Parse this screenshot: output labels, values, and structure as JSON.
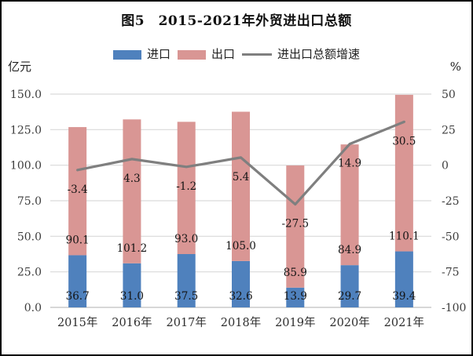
{
  "figure": {
    "title": "图5　2015-2021年外贸进出口总额",
    "left_axis_unit": "亿元",
    "right_axis_unit": "%"
  },
  "legend": [
    {
      "label": "进口",
      "marker": "swatch",
      "color": "#4F81BD"
    },
    {
      "label": "出口",
      "marker": "swatch",
      "color": "#D99694"
    },
    {
      "label": "进出口总额增速",
      "marker": "line",
      "color": "#7F7F7F"
    }
  ],
  "colors": {
    "import_bar": "#4F81BD",
    "export_bar": "#D99694",
    "growth_line": "#7F7F7F",
    "gridline": "#D9D9D9",
    "axis_line": "#BFBFBF"
  },
  "chart_data": {
    "type": "bar",
    "subtype": "stacked-bar-with-line",
    "title": "图5　2015-2021年外贸进出口总额",
    "categories": [
      "2015年",
      "2016年",
      "2017年",
      "2018年",
      "2019年",
      "2020年",
      "2021年"
    ],
    "series": [
      {
        "name": "进口",
        "type": "bar",
        "axis": "left",
        "color": "#4F81BD",
        "values": [
          36.7,
          31.0,
          37.5,
          32.6,
          13.9,
          29.7,
          39.4
        ]
      },
      {
        "name": "出口",
        "type": "bar",
        "axis": "left",
        "color": "#D99694",
        "values": [
          90.1,
          101.2,
          93.0,
          105.0,
          85.9,
          84.9,
          110.1
        ]
      },
      {
        "name": "进出口总额增速",
        "type": "line",
        "axis": "right",
        "color": "#7F7F7F",
        "values": [
          -3.4,
          4.3,
          -1.2,
          5.4,
          -27.5,
          14.9,
          30.5
        ]
      }
    ],
    "left_axis": {
      "unit": "亿元",
      "min": 0,
      "max": 150,
      "step": 25,
      "ticks": [
        "0.0",
        "25.0",
        "50.0",
        "75.0",
        "100.0",
        "125.0",
        "150.0"
      ]
    },
    "right_axis": {
      "unit": "%",
      "min": -100,
      "max": 50,
      "step": 25,
      "ticks": [
        "-100",
        "-75",
        "-50",
        "-25",
        "0",
        "25",
        "50"
      ]
    },
    "grid": true,
    "legend_position": "top"
  }
}
